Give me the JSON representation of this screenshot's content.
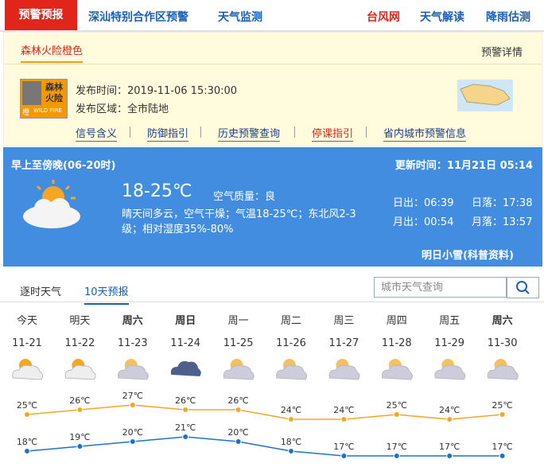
{
  "nav": {
    "active": "预警预报",
    "items": [
      "深汕特别合作区预警",
      "天气监测"
    ],
    "right": [
      "台风网",
      "天气解读",
      "降雨估测"
    ]
  },
  "warning": {
    "tab": "森林火险橙色",
    "detail": "预警详情",
    "icon_text": [
      "森林",
      "火险",
      "橙",
      "WILD FIRE"
    ],
    "issue_time": "发布时间：2019-11-06 15:30:00",
    "area": "发布区域：全市陆地",
    "links": [
      "信号含义",
      "防御指引",
      "历史预警查询",
      "停课指引",
      "省内城市预警信息"
    ]
  },
  "today": {
    "period": "早上至傍晚(06-20时)",
    "update": "更新时间：11月21日 05:14",
    "temp": "18-25℃",
    "air": "空气质量：良",
    "desc": "晴天间多云，空气干燥；气温18-25℃；东北风2-3级；相对湿度35%-80%",
    "sunrise": "日出：06:39",
    "sunset": "日落：17:38",
    "moonrise": "月出：00:54",
    "moonset": "月落：13:57",
    "tomorrow": "明日小雪(科普资料)"
  },
  "tabs": [
    "逐时天气",
    "10天预报"
  ],
  "search_placeholder": "城市天气查询",
  "forecast": {
    "days": [
      "今天",
      "明天",
      "周六",
      "周日",
      "周一",
      "周二",
      "周三",
      "周四",
      "周五",
      "周六"
    ],
    "dates": [
      "11-21",
      "11-22",
      "11-23",
      "11-24",
      "11-25",
      "11-26",
      "11-27",
      "11-28",
      "11-29",
      "11-30"
    ],
    "high": {
      "values": [
        25,
        26,
        27,
        26,
        26,
        24,
        24,
        25,
        24,
        25
      ],
      "value_labels": [
        "25℃",
        "26℃",
        "27℃",
        "26℃",
        "26℃",
        "24℃",
        "24℃",
        "25℃",
        "24℃",
        "25℃"
      ]
    },
    "low": {
      "values": [
        18,
        19,
        20,
        21,
        20,
        18,
        17,
        17,
        17,
        17
      ],
      "value_labels": [
        "18℃",
        "19℃",
        "20℃",
        "21℃",
        "20℃",
        "18℃",
        "17℃",
        "17℃",
        "17℃",
        "17℃"
      ]
    }
  }
}
